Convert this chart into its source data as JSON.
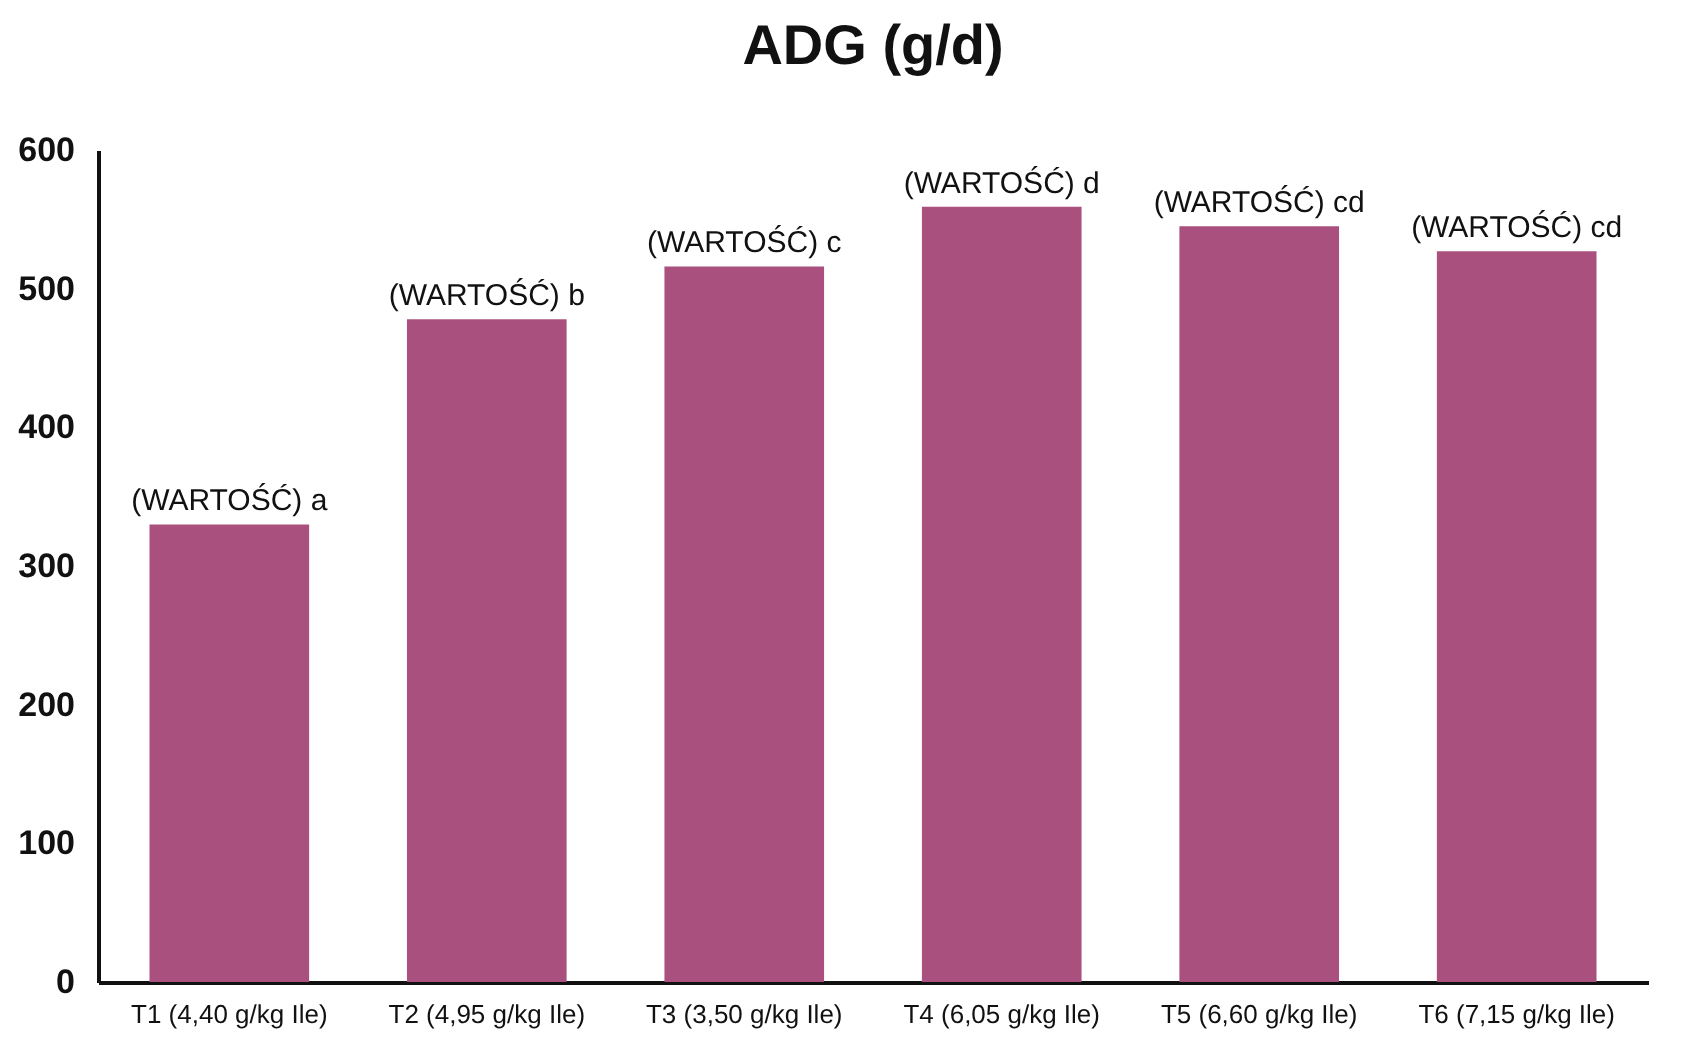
{
  "chart_data": {
    "type": "bar",
    "title": "ADG (g/d)",
    "categories": [
      "T1 (4,40 g/kg Ile)",
      "T2 (4,95 g/kg Ile)",
      "T3 (3,50 g/kg Ile)",
      "T4 (6,05 g/kg Ile)",
      "T5 (6,60 g/kg Ile)",
      "T6 (7,15 g/kg Ile)"
    ],
    "values": [
      330,
      478,
      516,
      559,
      545,
      527
    ],
    "value_labels": [
      "(WARTOŚĆ) a",
      "(WARTOŚĆ) b",
      "(WARTOŚĆ) c",
      "(WARTOŚĆ) d",
      "(WARTOŚĆ) cd",
      "(WARTOŚĆ) cd"
    ],
    "color": "#a9507f",
    "ylim": [
      0,
      600
    ],
    "yticks": [
      0,
      100,
      200,
      300,
      400,
      500,
      600
    ],
    "grid": false
  }
}
